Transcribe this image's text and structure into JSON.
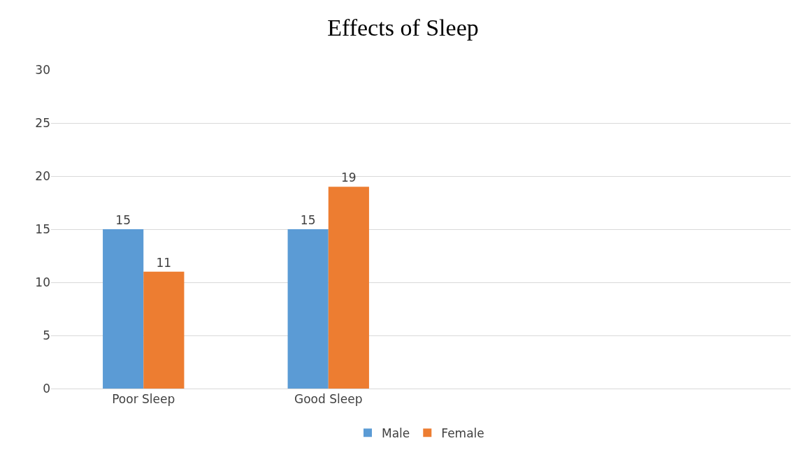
{
  "chart_data": {
    "type": "bar",
    "title": "Effects of Sleep",
    "categories": [
      "Poor Sleep",
      "Good Sleep",
      null,
      null
    ],
    "series": [
      {
        "name": "Male",
        "color": "#5b9bd5",
        "values": [
          15,
          15,
          null,
          null
        ]
      },
      {
        "name": "Female",
        "color": "#ed7d31",
        "values": [
          11,
          19,
          null,
          null
        ]
      }
    ],
    "ylim": [
      0,
      30
    ],
    "yticks": [
      0,
      5,
      10,
      15,
      20,
      25,
      30
    ],
    "grid": "y",
    "legend": "bottom",
    "data_labels": true
  }
}
